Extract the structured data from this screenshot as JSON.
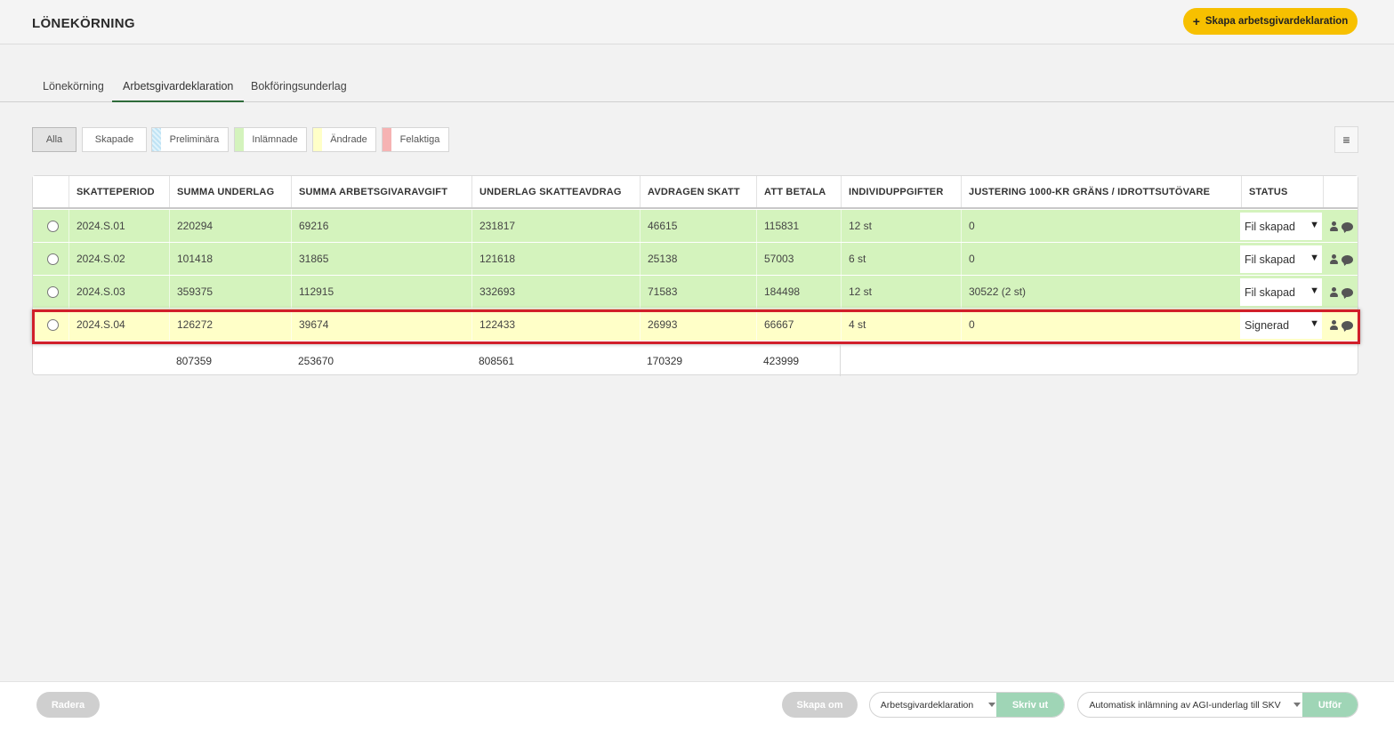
{
  "header": {
    "title": "LÖNEKÖRNING",
    "primary_button": "Skapa arbetsgivardeklaration"
  },
  "tabs": [
    {
      "label": "Lönekörning",
      "active": false
    },
    {
      "label": "Arbetsgivardeklaration",
      "active": true
    },
    {
      "label": "Bokföringsunderlag",
      "active": false
    }
  ],
  "filters": [
    {
      "label": "Alla",
      "active": true,
      "color": null
    },
    {
      "label": "Skapade",
      "active": false,
      "color": null
    },
    {
      "label": "Preliminära",
      "active": false,
      "color": "#cfe9f7"
    },
    {
      "label": "Inlämnade",
      "active": false,
      "color": "#d4f3bd"
    },
    {
      "label": "Ändrade",
      "active": false,
      "color": "#ffffc8"
    },
    {
      "label": "Felaktiga",
      "active": false,
      "color": "#f6b3b3"
    }
  ],
  "table": {
    "columns": [
      "SKATTEPERIOD",
      "SUMMA UNDERLAG",
      "SUMMA ARBETSGIVARAVGIFT",
      "UNDERLAG SKATTEAVDRAG",
      "AVDRAGEN SKATT",
      "ATT BETALA",
      "INDIVIDUPPGIFTER",
      "JUSTERING 1000-KR GRÄNS / IDROTTSUTÖVARE",
      "STATUS"
    ],
    "rows": [
      {
        "period": "2024.S.01",
        "summa_underlag": "220294",
        "arbetsgivaravgift": "69216",
        "underlag_skatteavdrag": "231817",
        "avdragen_skatt": "46615",
        "att_betala": "115831",
        "individuppgifter": "12 st",
        "justering": "0",
        "status": "Fil skapad",
        "row_color": "#d4f3bd"
      },
      {
        "period": "2024.S.02",
        "summa_underlag": "101418",
        "arbetsgivaravgift": "31865",
        "underlag_skatteavdrag": "121618",
        "avdragen_skatt": "25138",
        "att_betala": "57003",
        "individuppgifter": "6 st",
        "justering": "0",
        "status": "Fil skapad",
        "row_color": "#d4f3bd"
      },
      {
        "period": "2024.S.03",
        "summa_underlag": "359375",
        "arbetsgivaravgift": "112915",
        "underlag_skatteavdrag": "332693",
        "avdragen_skatt": "71583",
        "att_betala": "184498",
        "individuppgifter": "12 st",
        "justering": "30522 (2 st)",
        "status": "Fil skapad",
        "row_color": "#d4f3bd"
      },
      {
        "period": "2024.S.04",
        "summa_underlag": "126272",
        "arbetsgivaravgift": "39674",
        "underlag_skatteavdrag": "122433",
        "avdragen_skatt": "26993",
        "att_betala": "66667",
        "individuppgifter": "4 st",
        "justering": "0",
        "status": "Signerad",
        "row_color": "#ffffc8"
      }
    ],
    "totals": {
      "summa_underlag": "807359",
      "arbetsgivaravgift": "253670",
      "underlag_skatteavdrag": "808561",
      "avdragen_skatt": "170329",
      "att_betala": "423999"
    }
  },
  "footer": {
    "delete_button": "Radera",
    "recreate_button": "Skapa om",
    "print_select": "Arbetsgivardeklaration",
    "print_button": "Skriv ut",
    "submit_select": "Automatisk inlämning av AGI-underlag till SKV",
    "submit_button": "Utför"
  },
  "colors": {
    "accent": "#f7c000",
    "tab_underline": "#2e6b3a",
    "row_green": "#d4f3bd",
    "row_yellow": "#ffffc8",
    "highlight": "#d11f2a",
    "action_green": "#9fd5b6"
  },
  "icons": {
    "menu": "hamburger-icon",
    "user": "person-icon",
    "comment": "chat-bubble-icon",
    "plus": "plus-icon"
  }
}
